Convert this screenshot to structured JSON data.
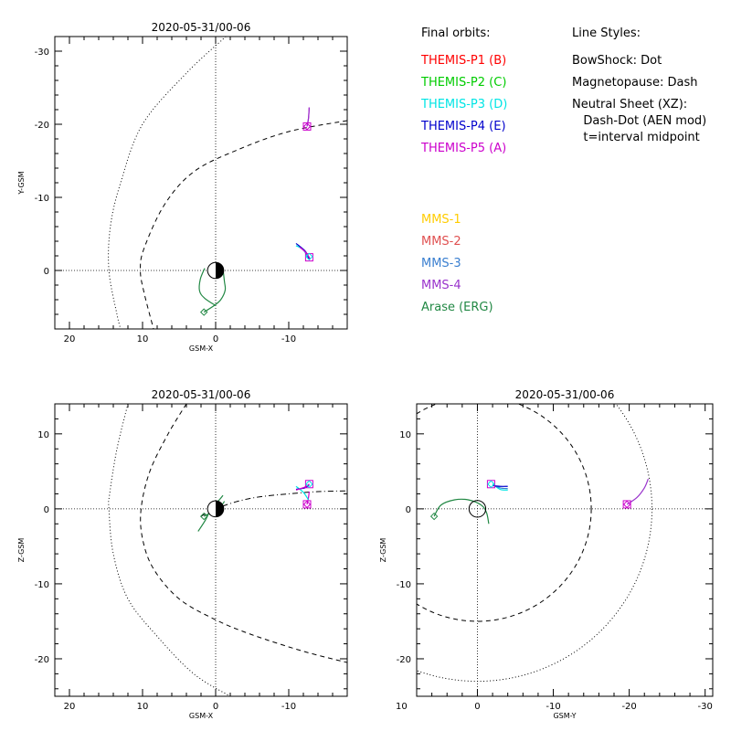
{
  "legend": {
    "final_orbits_title": "Final orbits:",
    "line_styles_title": "Line Styles:",
    "spacecraft": [
      {
        "label": "THEMIS-P1 (B)",
        "color": "#ff0000"
      },
      {
        "label": "THEMIS-P2 (C)",
        "color": "#00cc00"
      },
      {
        "label": "THEMIS-P3 (D)",
        "color": "#00e5e5"
      },
      {
        "label": "THEMIS-P4 (E)",
        "color": "#0000cc"
      },
      {
        "label": "THEMIS-P5 (A)",
        "color": "#cc00cc"
      }
    ],
    "mission": [
      {
        "label": "MMS-1",
        "color": "#ffcc00"
      },
      {
        "label": "MMS-2",
        "color": "#e05050"
      },
      {
        "label": "MMS-3",
        "color": "#3a7fd0"
      },
      {
        "label": "MMS-4",
        "color": "#9933cc"
      },
      {
        "label": "Arase (ERG)",
        "color": "#228844"
      }
    ],
    "styles": [
      "BowShock: Dot",
      "Magnetopause: Dash",
      "Neutral Sheet (XZ):",
      "  Dash-Dot (AEN mod)",
      "  t=interval midpoint"
    ]
  },
  "chart_data": [
    {
      "type": "line",
      "title": "2020-05-31/00-06",
      "xlabel": "GSM-X",
      "ylabel": "Y-GSM",
      "xlim": [
        22,
        -18
      ],
      "ylim": [
        8,
        -32
      ],
      "xticks": [
        20,
        10,
        0,
        -10
      ],
      "yticks": [
        -30,
        -20,
        -10,
        0
      ],
      "series": [
        {
          "kind": "bowshock",
          "points": [
            [
              -1.4,
              -32
            ],
            [
              4,
              -27
            ],
            [
              10,
              -20
            ],
            [
              13,
              -12
            ],
            [
              14.4,
              -6
            ],
            [
              14.6,
              0
            ],
            [
              13.5,
              6
            ],
            [
              13,
              8
            ]
          ]
        },
        {
          "kind": "magnetopause",
          "points": [
            [
              -18,
              -20.5
            ],
            [
              -10,
              -19
            ],
            [
              -3,
              -16.5
            ],
            [
              3,
              -13.5
            ],
            [
              7,
              -9
            ],
            [
              9.8,
              -3
            ],
            [
              10.3,
              0
            ],
            [
              9.8,
              3
            ],
            [
              8.5,
              8
            ]
          ]
        },
        {
          "kind": "orbit",
          "color": "#cc00cc",
          "points": [
            [
              -12.5,
              -19.7
            ],
            [
              -12.7,
              -20.8
            ],
            [
              -12.8,
              -22.3
            ]
          ]
        },
        {
          "kind": "orbit",
          "color": "#9933cc",
          "points": [
            [
              -12.5,
              -19.7
            ],
            [
              -12.7,
              -20.8
            ],
            [
              -12.8,
              -22.3
            ]
          ]
        },
        {
          "kind": "orbit",
          "color": "#00e5e5",
          "points": [
            [
              -11,
              -3.4
            ],
            [
              -12,
              -2.8
            ],
            [
              -12.7,
              -1.6
            ]
          ]
        },
        {
          "kind": "orbit",
          "color": "#0000cc",
          "points": [
            [
              -11,
              -3.7
            ],
            [
              -12.3,
              -2.6
            ],
            [
              -12.8,
              -1.5
            ]
          ]
        },
        {
          "kind": "orbit",
          "color": "#cc00cc",
          "points": [
            [
              -11.5,
              -3.2
            ],
            [
              -12.4,
              -2.4
            ],
            [
              -12.9,
              -1.6
            ]
          ]
        },
        {
          "kind": "orbit",
          "color": "#228844",
          "points": [
            [
              1.5,
              -0.3
            ],
            [
              2.1,
              1.2
            ],
            [
              2.2,
              2.8
            ],
            [
              1.5,
              3.8
            ],
            [
              0,
              4.8
            ]
          ]
        },
        {
          "kind": "orbit",
          "color": "#228844",
          "points": [
            [
              -1,
              -0.2
            ],
            [
              -1.2,
              1.5
            ],
            [
              -1.3,
              2.7
            ],
            [
              -0.7,
              4
            ],
            [
              0.2,
              4.8
            ],
            [
              1.6,
              5.7
            ]
          ]
        }
      ],
      "markers": [
        {
          "shape": "square",
          "color": "#cc00cc",
          "x": -12.5,
          "y": -19.7
        },
        {
          "shape": "square",
          "color": "#cc00cc",
          "x": -12.8,
          "y": -1.8
        },
        {
          "shape": "diamond",
          "color": "#cc00cc",
          "x": -12.5,
          "y": -19.7
        },
        {
          "shape": "diamond",
          "color": "#00e5e5",
          "x": -12.8,
          "y": -1.9
        },
        {
          "shape": "diamond",
          "color": "#228844",
          "x": 1.6,
          "y": 5.7
        }
      ]
    },
    {
      "type": "line",
      "title": "2020-05-31/00-06",
      "xlabel": "GSM-X",
      "ylabel": "Z-GSM",
      "xlim": [
        22,
        -18
      ],
      "ylim": [
        -25,
        14
      ],
      "xticks": [
        20,
        10,
        0,
        -10
      ],
      "yticks": [
        10,
        0,
        -10,
        -20
      ],
      "series": [
        {
          "kind": "bowshock",
          "points": [
            [
              12,
              14
            ],
            [
              13.5,
              8
            ],
            [
              14.5,
              2
            ],
            [
              14.6,
              0
            ],
            [
              14,
              -6
            ],
            [
              12,
              -12
            ],
            [
              8,
              -17
            ],
            [
              3,
              -22
            ],
            [
              -2,
              -25
            ]
          ]
        },
        {
          "kind": "magnetopause",
          "points": [
            [
              4,
              14
            ],
            [
              6.5,
              10
            ],
            [
              9,
              5
            ],
            [
              10.2,
              0
            ],
            [
              10,
              -4
            ],
            [
              8.5,
              -8
            ],
            [
              5,
              -12
            ],
            [
              0,
              -14.8
            ],
            [
              -5,
              -16.8
            ],
            [
              -12,
              -19
            ],
            [
              -18,
              -20.5
            ]
          ]
        },
        {
          "kind": "neutralsheet",
          "points": [
            [
              2,
              -1
            ],
            [
              0,
              0
            ],
            [
              -3,
              1
            ],
            [
              -6,
              1.6
            ],
            [
              -10,
              2
            ],
            [
              -14,
              2.3
            ],
            [
              -18,
              2.4
            ]
          ]
        },
        {
          "kind": "orbit",
          "color": "#cc00cc",
          "points": [
            [
              -12.5,
              0.6
            ],
            [
              -12.7,
              1.5
            ],
            [
              -12.8,
              2.3
            ]
          ]
        },
        {
          "kind": "orbit",
          "color": "#00e5e5",
          "points": [
            [
              -11,
              3
            ],
            [
              -12,
              2.2
            ],
            [
              -12.7,
              1.2
            ]
          ]
        },
        {
          "kind": "orbit",
          "color": "#0000cc",
          "points": [
            [
              -11,
              2.6
            ],
            [
              -12.2,
              2.8
            ],
            [
              -12.8,
              3.2
            ]
          ]
        },
        {
          "kind": "orbit",
          "color": "#cc00cc",
          "points": [
            [
              -11,
              2.5
            ],
            [
              -12.2,
              2.9
            ],
            [
              -12.8,
              3.3
            ]
          ]
        },
        {
          "kind": "orbit",
          "color": "#228844",
          "points": [
            [
              2.4,
              -3
            ],
            [
              1.4,
              -1.5
            ],
            [
              0.5,
              0.2
            ],
            [
              -0.5,
              1.2
            ],
            [
              -1,
              1.8
            ]
          ]
        },
        {
          "kind": "orbit",
          "color": "#228844",
          "points": [
            [
              1.6,
              -1
            ],
            [
              0.5,
              -0.4
            ],
            [
              -0.8,
              0.5
            ],
            [
              -1.2,
              1
            ]
          ]
        }
      ],
      "markers": [
        {
          "shape": "square",
          "color": "#cc00cc",
          "x": -12.5,
          "y": 0.6
        },
        {
          "shape": "square",
          "color": "#cc00cc",
          "x": -12.8,
          "y": 3.3
        },
        {
          "shape": "diamond",
          "color": "#cc00cc",
          "x": -12.5,
          "y": 0.6
        },
        {
          "shape": "diamond",
          "color": "#00e5e5",
          "x": -12.8,
          "y": 3.3
        },
        {
          "shape": "diamond",
          "color": "#228844",
          "x": 1.6,
          "y": -1
        }
      ]
    },
    {
      "type": "line",
      "title": "2020-05-31/00-06",
      "xlabel": "GSM-Y",
      "ylabel": "Z-GSM",
      "xlim": [
        8,
        -31
      ],
      "ylim": [
        -25,
        14
      ],
      "xticks": [
        10,
        0,
        -10,
        -20,
        -30
      ],
      "yticks": [
        10,
        0,
        -10,
        -20
      ],
      "series": [
        {
          "kind": "bowshock_circle",
          "cx": 0,
          "cy": 0,
          "r": 23
        },
        {
          "kind": "magnetopause_circle",
          "cx": 0,
          "cy": 0,
          "r": 15
        },
        {
          "kind": "orbit",
          "color": "#9933cc",
          "points": [
            [
              -19.7,
              0.6
            ],
            [
              -21,
              1.5
            ],
            [
              -22,
              2.8
            ],
            [
              -22.5,
              4
            ]
          ]
        },
        {
          "kind": "orbit",
          "color": "#00e5e5",
          "points": [
            [
              -2,
              3.3
            ],
            [
              -3,
              2.6
            ],
            [
              -4,
              2.5
            ]
          ]
        },
        {
          "kind": "orbit",
          "color": "#3a7fd0",
          "points": [
            [
              -2,
              3.2
            ],
            [
              -3,
              2.8
            ],
            [
              -4,
              2.7
            ]
          ]
        },
        {
          "kind": "orbit",
          "color": "#0000cc",
          "points": [
            [
              -2,
              3.1
            ],
            [
              -3,
              3
            ],
            [
              -4,
              3
            ]
          ]
        },
        {
          "kind": "orbit",
          "color": "#228844",
          "points": [
            [
              5.7,
              -1
            ],
            [
              4.8,
              0.5
            ],
            [
              3,
              1.2
            ],
            [
              1.2,
              1.2
            ],
            [
              -0.5,
              0.5
            ],
            [
              -1.2,
              -0.5
            ],
            [
              -1.5,
              -2
            ]
          ]
        }
      ],
      "markers": [
        {
          "shape": "square",
          "color": "#cc00cc",
          "x": -19.7,
          "y": 0.6
        },
        {
          "shape": "square",
          "color": "#cc00cc",
          "x": -1.8,
          "y": 3.3
        },
        {
          "shape": "diamond",
          "color": "#cc00cc",
          "x": -19.7,
          "y": 0.6
        },
        {
          "shape": "diamond",
          "color": "#00e5e5",
          "x": -1.8,
          "y": 3.3
        },
        {
          "shape": "diamond",
          "color": "#228844",
          "x": 5.7,
          "y": -1
        }
      ]
    }
  ]
}
